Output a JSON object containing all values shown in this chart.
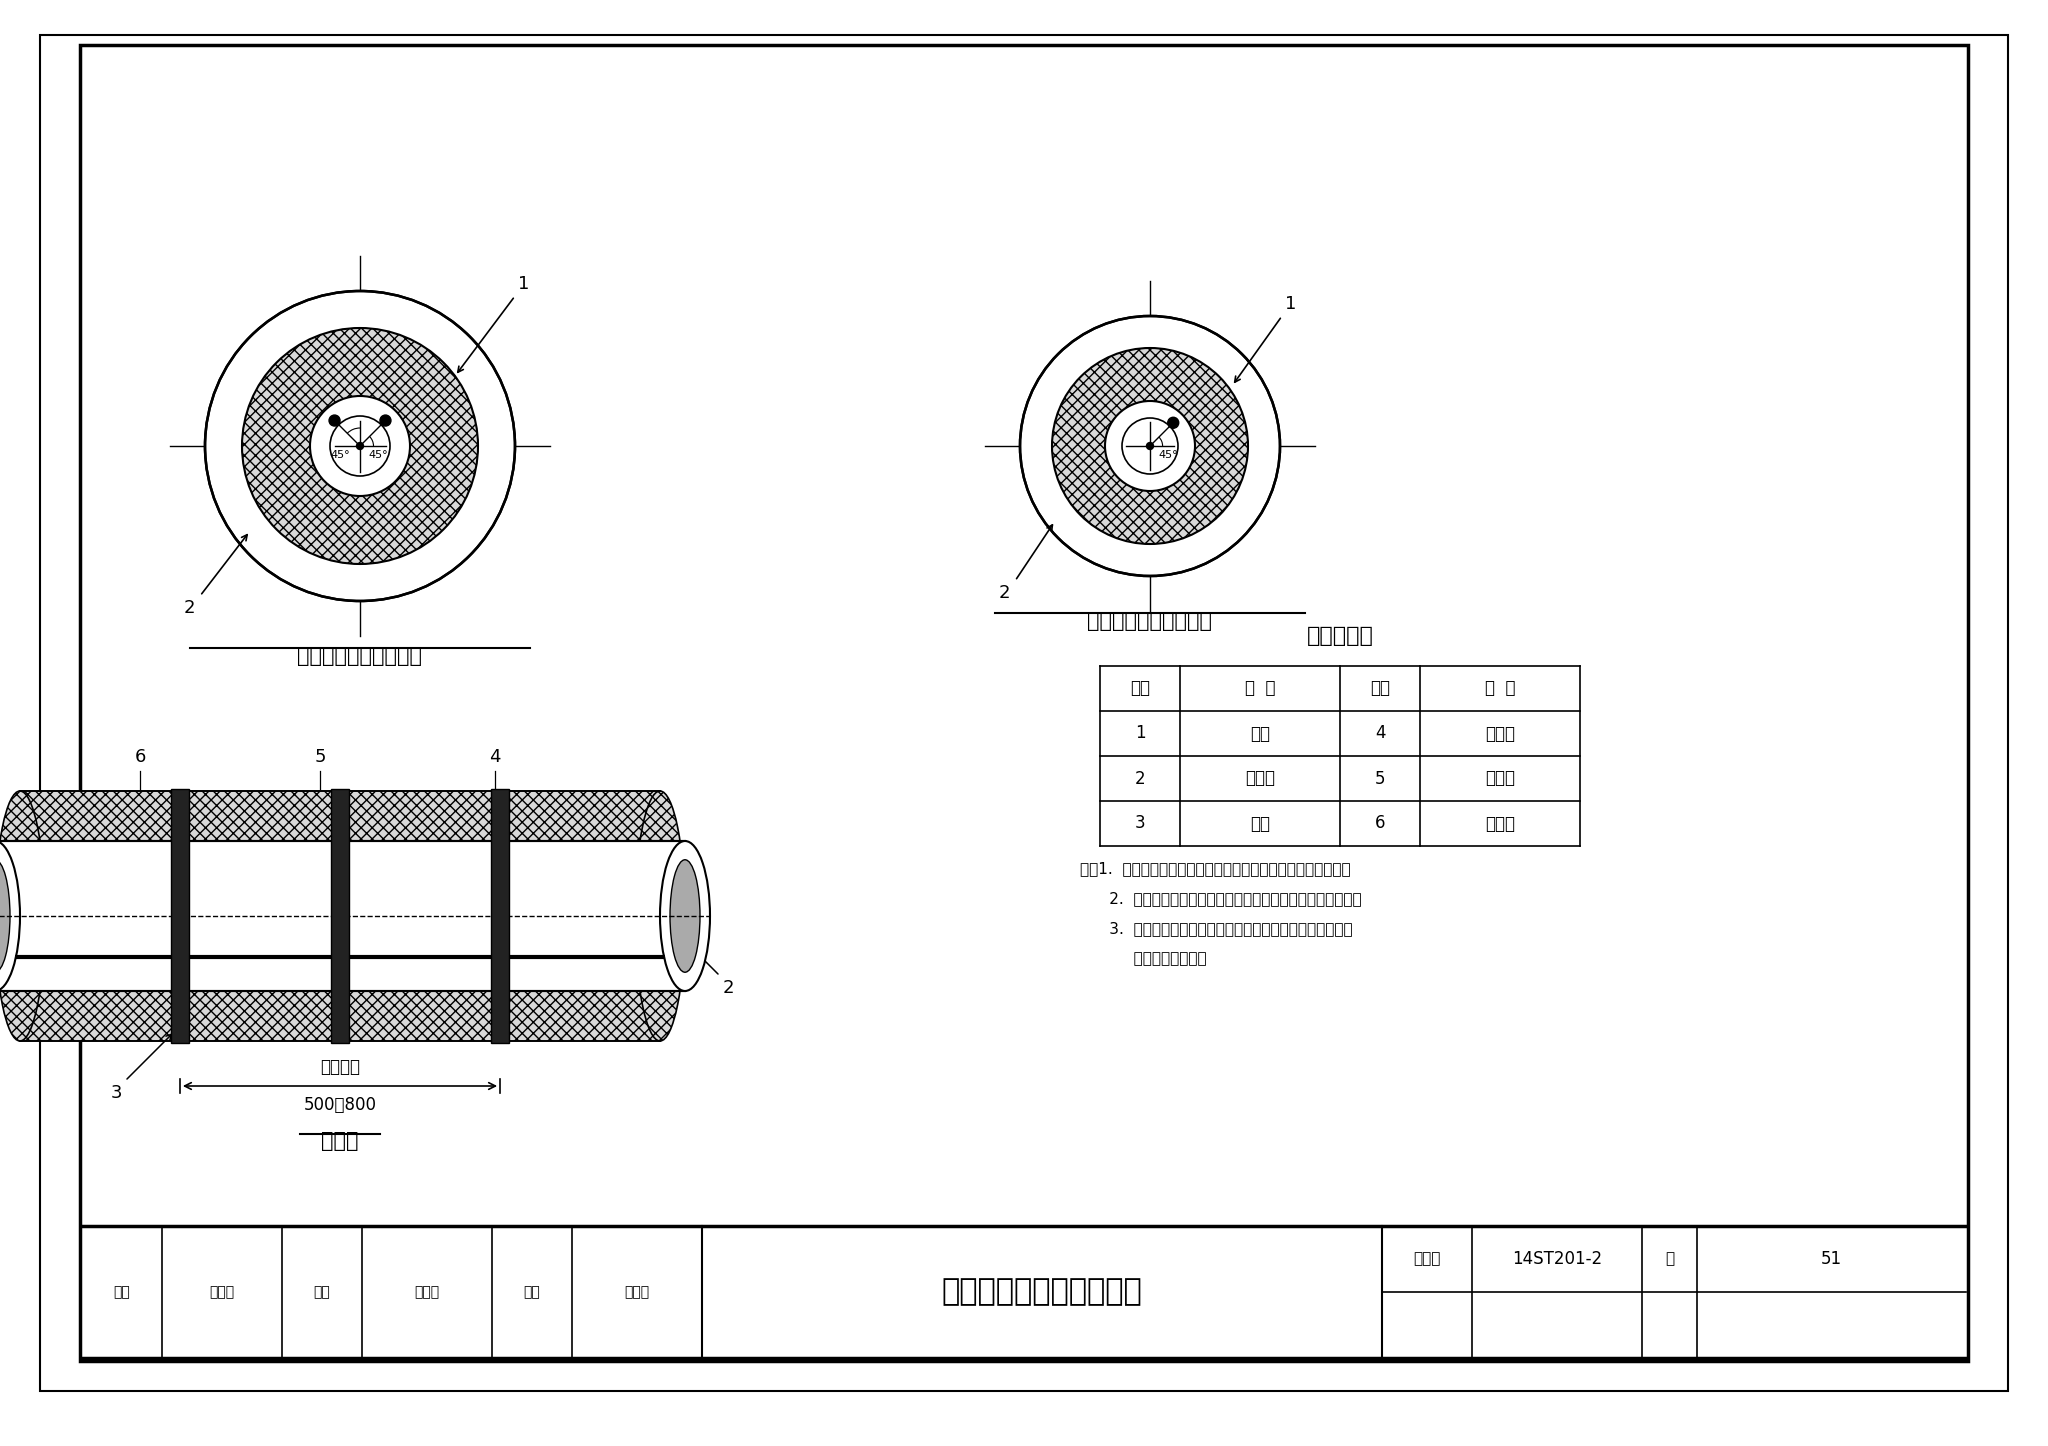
{
  "bg_color": "#ffffff",
  "title": "管道电伴热带安装位置图",
  "atlas_no": "14ST201-2",
  "page": "51",
  "left_diagram_title": "双电伴热带安装断面图",
  "right_diagram_title": "单电伴热带安装断面图",
  "side_diagram_title": "侧面图",
  "table_title": "名称对照表",
  "table_headers": [
    "编号",
    "名  称",
    "编号",
    "名  称"
  ],
  "table_rows": [
    [
      "1",
      "管道",
      "4",
      "绝热层"
    ],
    [
      "2",
      "电热带",
      "5",
      "防潮层"
    ],
    [
      "3",
      "扎带",
      "6",
      "保护层"
    ]
  ],
  "notes_line1": "注：1.  绝热层材质和厚度，防潮层和保护层做法由设计者确定。",
  "notes_line2": "      2.  电伴热绝热工程的施工和验收要求与其他绝热工程相同。",
  "notes_line3": "      3.  用于防冻为目的的电伴热绝热层厚度不得小于夏季防结",
  "notes_line4": "           露绝热层的厚度。",
  "dim_text": "最大距离",
  "dim_value": "500～800",
  "footer_row1": [
    "审核",
    "张先群",
    "校对",
    "赵际顺",
    "设计",
    "霍立国"
  ],
  "atlas_label": "图集号",
  "page_label": "页"
}
